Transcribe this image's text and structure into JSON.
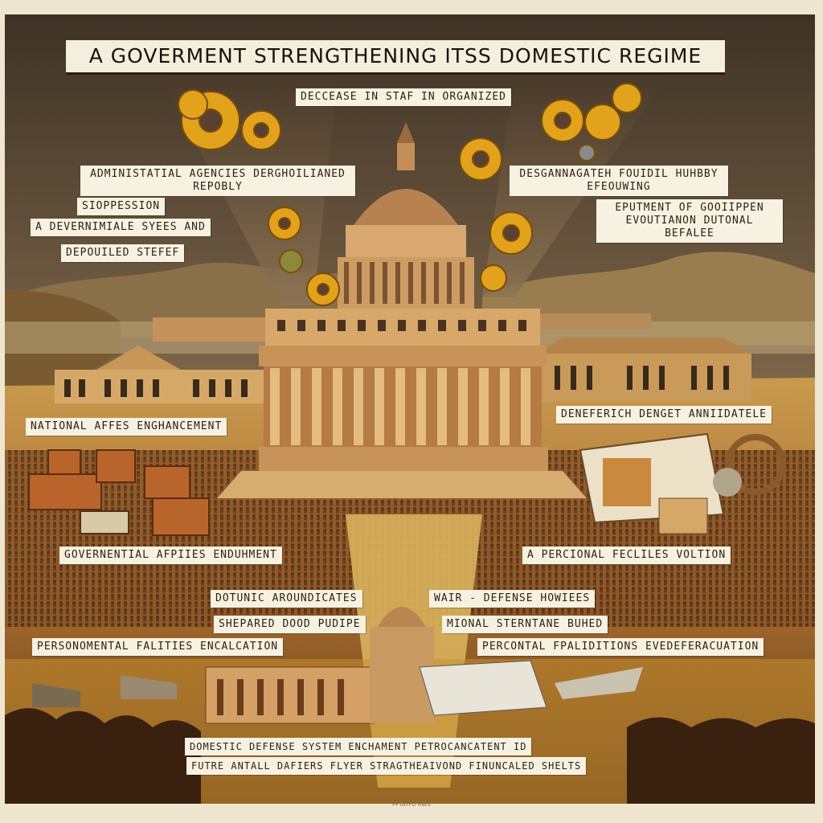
{
  "poster": {
    "title": "A GOVERMENT STRENGTHENING ITSS DOMESTIC REGIME",
    "labels": {
      "decrease": "DECCEASE IN STAF IN ORGANIZED",
      "admin": "ADMINISTATIAL AGENCIES DERGHOILIANED REPOBLY",
      "desg": "DESGANNAGATEH FOUIDIL HUHBBY EFEOUWING",
      "suppression": "SIOPPESSION",
      "devernmiale": "A DEVERNIMIALE SYEES AND",
      "depouiled": "DEPOUILED STEFEF",
      "eputment": "EPUTMENT OF GOOIIPPEN EVOUTIANON DUTONAL BEFALEE",
      "national": "NATIONAL AFFES ENGHANCEMENT",
      "deneferich": "DENEFERICH DENGET ANNIIDATELE",
      "governental": "GOVERNENTIAL AFPIIES ENDUHMENT",
      "personal": "A PERCIONAL FECLILES VOLTION",
      "dotunic": "DOTUNIC AROUNDICATES",
      "wair": "WAIR - DEFENSE HOWIEES",
      "shepared": "SHEPARED DOOD PUDIPE",
      "mional": "MIONAL STERNTANE BUHED",
      "personomental": "PERSONOMENTAL FALITIES ENCALCATION",
      "percontal": "PERCONTAL FPALIDITIONS EVEDEFERACUATION",
      "bottom_line1": "DOMESTIC DEFENSE SYSTEM ENCHAMENT PETROCANCATENT ID",
      "bottom_line2": "FUTRE ANTALL DAFIERS FLYER STRAGTHEAIVOND FINUNCALED SHELTS"
    },
    "caption": "FFTATFD RWS",
    "colors": {
      "sky": "#5a4a38",
      "sepia": "#c9a052",
      "gold": "#e2a21c",
      "stone": "#d2a266",
      "crowd": "#6b3e1e"
    }
  }
}
